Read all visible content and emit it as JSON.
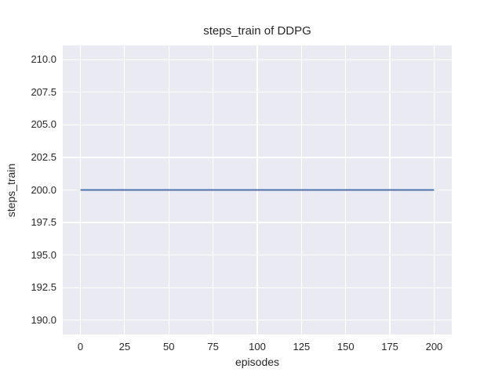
{
  "chart_data": {
    "type": "line",
    "title": "steps_train of DDPG",
    "xlabel": "episodes",
    "ylabel": "steps_train",
    "series": [
      {
        "name": "steps_train",
        "x": [
          0,
          200
        ],
        "y": [
          200,
          200
        ],
        "color": "#4c72b0",
        "linewidth": 2
      }
    ],
    "xticks": {
      "values": [
        0,
        25,
        50,
        75,
        100,
        125,
        150,
        175,
        200
      ],
      "labels": [
        "0",
        "25",
        "50",
        "75",
        "100",
        "125",
        "150",
        "175",
        "200"
      ]
    },
    "yticks": {
      "values": [
        210.0,
        207.5,
        205.0,
        202.5,
        200.0,
        197.5,
        195.0,
        192.5,
        190.0
      ],
      "labels": [
        "210.0",
        "207.5",
        "205.0",
        "202.5",
        "200.0",
        "197.5",
        "195.0",
        "192.5",
        "190.0"
      ]
    },
    "xlim": [
      -10,
      210
    ],
    "ylim": [
      188.9,
      211.1
    ],
    "grid": true,
    "legend": false,
    "colors": {
      "figure_bg": "#ffffff",
      "plot_bg": "#eaeaf2",
      "grid": "#ffffff",
      "line": "#4c72b0",
      "text": "#262626"
    }
  }
}
